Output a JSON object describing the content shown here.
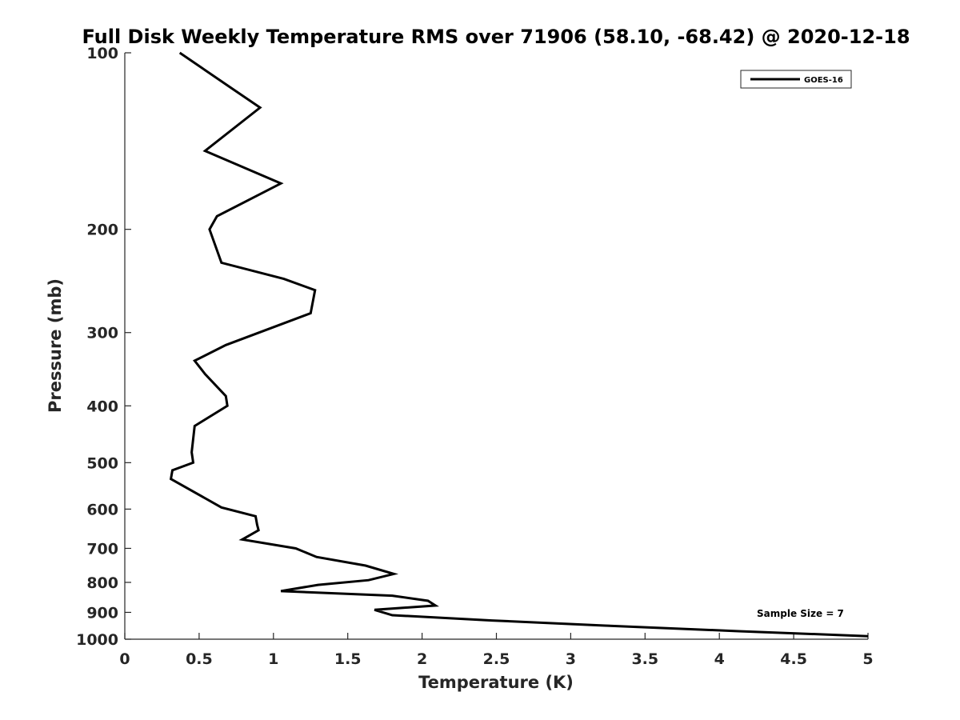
{
  "chart_data": {
    "type": "line",
    "title": "Full Disk Weekly Temperature RMS over 71906 (58.10, -68.42) @ 2020-12-18",
    "xlabel": "Temperature (K)",
    "ylabel": "Pressure (mb)",
    "xlim": [
      0,
      5
    ],
    "ylim": [
      100,
      1000
    ],
    "y_scale": "log",
    "y_reversed": true,
    "grid": false,
    "x_ticks": [
      0,
      0.5,
      1,
      1.5,
      2,
      2.5,
      3,
      3.5,
      4,
      4.5,
      5
    ],
    "x_tick_labels": [
      "0",
      "0.5",
      "1",
      "1.5",
      "2",
      "2.5",
      "3",
      "3.5",
      "4",
      "4.5",
      "5"
    ],
    "y_ticks": [
      100,
      200,
      300,
      400,
      500,
      600,
      700,
      800,
      900,
      1000
    ],
    "y_tick_labels": [
      "100",
      "200",
      "300",
      "400",
      "500",
      "600",
      "700",
      "800",
      "900",
      "1000"
    ],
    "legend": {
      "placement": "top-right",
      "entries": [
        "GOES-16"
      ]
    },
    "annotation": "Sample Size = 7",
    "series": [
      {
        "name": "GOES-16",
        "color": "#000000",
        "points": [
          [
            0.37,
            100
          ],
          [
            0.72,
            115
          ],
          [
            0.91,
            124
          ],
          [
            0.54,
            147
          ],
          [
            1.05,
            167
          ],
          [
            0.62,
            190
          ],
          [
            0.57,
            200
          ],
          [
            0.65,
            228
          ],
          [
            1.07,
            243
          ],
          [
            1.28,
            254
          ],
          [
            1.25,
            278
          ],
          [
            0.68,
            315
          ],
          [
            0.47,
            335
          ],
          [
            0.54,
            353
          ],
          [
            0.68,
            385
          ],
          [
            0.69,
            400
          ],
          [
            0.47,
            433
          ],
          [
            0.45,
            480
          ],
          [
            0.46,
            500
          ],
          [
            0.32,
            515
          ],
          [
            0.31,
            533
          ],
          [
            0.65,
            596
          ],
          [
            0.88,
            617
          ],
          [
            0.89,
            638
          ],
          [
            0.9,
            652
          ],
          [
            0.79,
            676
          ],
          [
            1.15,
            700
          ],
          [
            1.29,
            724
          ],
          [
            1.62,
            749
          ],
          [
            1.81,
            774
          ],
          [
            1.64,
            793
          ],
          [
            1.3,
            808
          ],
          [
            1.05,
            828
          ],
          [
            1.8,
            843
          ],
          [
            2.04,
            860
          ],
          [
            2.09,
            876
          ],
          [
            1.68,
            891
          ],
          [
            1.8,
            910
          ],
          [
            2.47,
            929
          ],
          [
            3.23,
            948
          ],
          [
            4.13,
            969
          ],
          [
            5.0,
            988
          ]
        ]
      }
    ]
  }
}
